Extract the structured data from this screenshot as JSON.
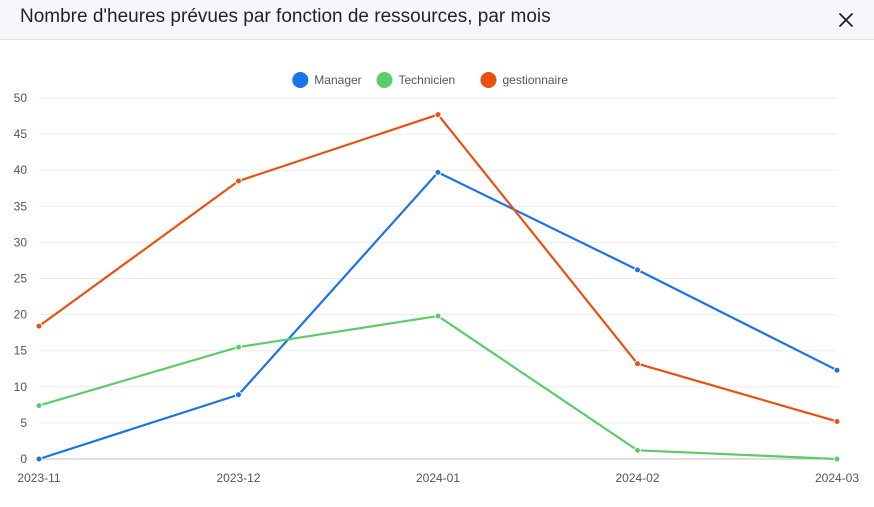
{
  "dialog": {
    "title": "Nombre d'heures prévues par fonction de ressources, par mois"
  },
  "icons": {
    "close": "close-icon"
  },
  "chart_data": {
    "type": "line",
    "title": "",
    "xlabel": "",
    "ylabel": "",
    "categories": [
      "2023-11",
      "2023-12",
      "2024-01",
      "2024-02",
      "2024-03"
    ],
    "ylim": [
      0,
      50
    ],
    "yticks": [
      0,
      5,
      10,
      15,
      20,
      25,
      30,
      35,
      40,
      45,
      50
    ],
    "grid": true,
    "legend_position": "top-center",
    "series": [
      {
        "name": "Manager",
        "color": "#1a73e8",
        "values": [
          0,
          8.9,
          39.7,
          26.2,
          12.3
        ]
      },
      {
        "name": "Technicien",
        "color": "#5ccc6a",
        "values": [
          7.4,
          15.5,
          19.8,
          1.2,
          0
        ]
      },
      {
        "name": "gestionnaire",
        "color": "#e8510f",
        "values": [
          18.4,
          38.5,
          47.7,
          13.2,
          5.2
        ]
      }
    ]
  }
}
